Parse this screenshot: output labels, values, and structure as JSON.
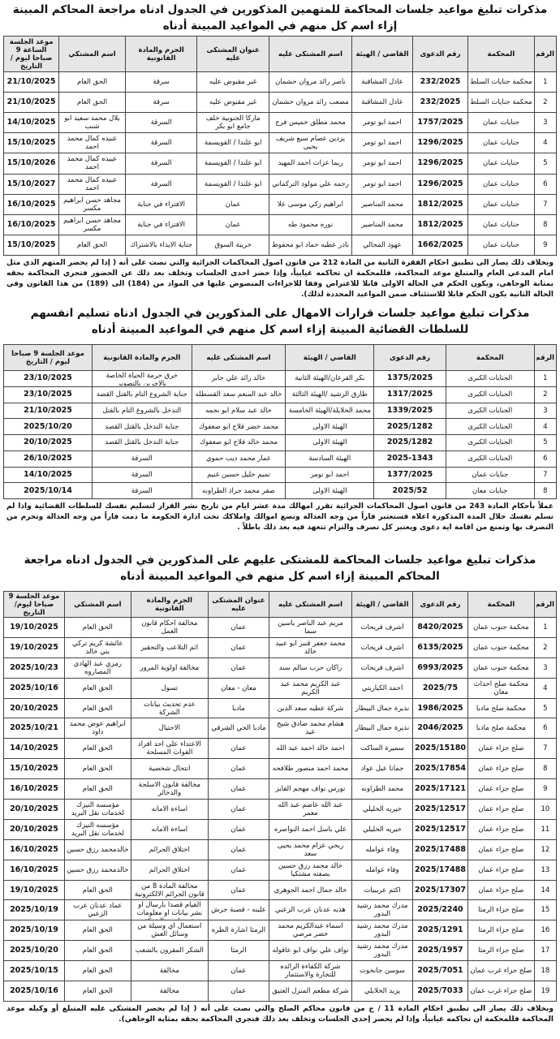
{
  "sections": [
    {
      "title": "مذكرات تبليغ مواعيد جلسات المحاكمة للمتهمين المذكورين في الجدول ادناه مراجعة المحاكم المبينة إزاء اسم كل منهم في المواعيد المبينة أدناه",
      "headers": [
        "الرقم",
        "المحكمة",
        "رقم الدعوى",
        "القاضي / الهيئة",
        "اسم المشتكى عليه",
        "عنوان المشتكى عليه",
        "الجرم والمادة القانونية",
        "اسم المشتكي",
        "موعد الجلسة الساعة 9 صباحا ليوم / التاريخ"
      ],
      "rows": [
        [
          "1",
          "محكمة جنايات السلط",
          "232/2025",
          "عادل المشاقبة",
          "ناصر رائد مروان خشمان",
          "غير مقبوض عليه",
          "سرقة",
          "الحق العام",
          "21/10/2025"
        ],
        [
          "2",
          "محكمة جنايات السلط",
          "232/2025",
          "عادل المشاقبة",
          "مصعب رائد مروان خشمان",
          "غير مقبوض عليه",
          "سرقة",
          "الحق العام",
          "21/10/2025"
        ],
        [
          "3",
          "جنايات عمان",
          "1757/2025",
          "احمد ابو تومر",
          "محمد مطلق خميس فرج",
          "ماركا الجنوبية خلف جامع ابو بكر",
          "السرقة",
          "بلال محمد سعيد ابو شنب",
          "14/10/2025"
        ],
        [
          "4",
          "جنايات عمان",
          "1296/2025",
          "احمد ابو تومر",
          "يزدين عصام سبع شريف يحيى",
          "ابو علندا / القويسمة",
          "السرقة",
          "عبيده كمال محمد احمد",
          "15/10/2025"
        ],
        [
          "5",
          "جنايات عمان",
          "1296/2025",
          "احمد ابو تومر",
          "ريما عزات احمد المهيد",
          "ابو علندا / القويسمة",
          "السرقة",
          "عبيده كمال محمد احمد",
          "15/10/2026"
        ],
        [
          "6",
          "جنايات عمان",
          "1296/2025",
          "احمد ابو تومر",
          "رحمه علي مولود التركماني",
          "ابو علندا / القويسمة",
          "السرقة",
          "عبيده كمال محمد احمد",
          "15/10/2027"
        ],
        [
          "7",
          "جنايات عمان",
          "1812/2025",
          "محمد المناصير",
          "ابراهيم زكي موسى علا",
          "عمان",
          "الافتراء في جناية",
          "مجاهد حسن ابراهيم مكسر",
          "16/10/2025"
        ],
        [
          "8",
          "جنايات عمان",
          "1812/2025",
          "محمد المناصير",
          "نوره محمود طه",
          "عمان",
          "الافتراء في جناية",
          "مجاهد حسن ابراهيم مكسر",
          "16/10/2025"
        ],
        [
          "9",
          "جنايات عمان",
          "1662/2025",
          "عهود المجالي",
          "نادر عطيه حماد ابو محفوظ",
          "خريبة السوق",
          "جناية الايذاء بالاشتراك",
          "الحق العام",
          "15/10/2025"
        ]
      ],
      "note": "وبخلاف ذلك يصار الى تطبيق احكام الفقرة الثانية من المادة 212 من قانون اصول المحاكمات الجزائية والتي نصت على أنه ( إذا لم يحضر المتهم الذي مثل امام المدعي العام والمتبلغ موعد المحاكمة، فللمحكمة ان تحاكمه غيابياً، وإذا حضر احدى الجلسات وتخلف بعد ذلك عن الحضور فتجري المحاكمة بحقه بمثابة الوجاهي، ويكون الحكم في الحالة الاولى قابلا للاعتراض وفقا للاجراءات المنصوص عليها في المواد من (184) الى (189) من هذا القانون وفي الحالة الثانية يكون الحكم قابلا للاستئناف ضمن المواعيد المحددة لذلك)."
    },
    {
      "title": "مذكرات تبليغ مواعيد جلسات قرارات الامهال على المذكورين في الجدول ادناه تسليم انفسهم للسلطات القضائية المبينة إزاء اسم كل منهم في المواعيد المبينة أدناه",
      "headers": [
        "الرقم",
        "المحكمة",
        "رقم الدعوى",
        "القاضي / الهيئة",
        "اسم المشتكى عليه",
        "الجرم والمادة القانونية",
        "موعد الجلسة 9 صباحا ليوم / التاريخ"
      ],
      "rows": [
        [
          "1",
          "الجنايات الكبرى",
          "1375/2025",
          "بكر القرعان/الهيئة الثانية",
          "خالد رائد علي جابر",
          "خرق حرمة الحياة الخاصة بالاخرين بالتصوير",
          "23/10/2025"
        ],
        [
          "2",
          "الجنايات الكبرى",
          "1317/2025",
          "طارق الرشيد /الهيئة الثالثة",
          "خالد عبد المنعم سعد القسطله",
          "جناية الشروع التام بالقتل القصد",
          "23/10/2025"
        ],
        [
          "3",
          "الجنايات الكبرى",
          "1339/2025",
          "محمد الخلايلة/الهيئة الخامسة",
          "خالد عبد سلام ابو نجمه",
          "التدخل بالشروع التام بالقتل",
          "21/10/2025"
        ],
        [
          "4",
          "الجنايات الكبرى",
          "2025/1282",
          "الهيئة الاولى",
          "محمد خضر فلاح ابو صعفوك",
          "جناية التدخل بالقتل القصد",
          "2025/10/20"
        ],
        [
          "5",
          "الجنايات الكبرى",
          "2025/1282",
          "الهيئة الاولى",
          "محمد خالد فلاح ابو صعفوك",
          "جناية التدخل بالقتل القصد",
          "20/10/2025"
        ],
        [
          "6",
          "الجنايات الكبرى",
          "2025-1343",
          "الهيئة السادسة",
          "عمار محمد ديب حموي",
          "السرقة",
          "26/10/2025"
        ],
        [
          "7",
          "جنايات عمان",
          "1377/2025",
          "احمد ابو تومر",
          "تميم خليل حسين غنيم",
          "السرقة",
          "14/10/2025"
        ],
        [
          "8",
          "جنايات معان",
          "2025/52",
          "الهيئة الاولى",
          "صقر محمد جراد الطراونه",
          "السرقة",
          "2025/10/14"
        ]
      ],
      "note": "عملاً بأحكام المادة 243 من قانون اصول المحاكمات الجزائية تقرر امهالك مدة عشر ايام من تاريخ نشر القرار لتسليم نفسك للسلطات القضائية واذا لم تسلم نفسك خلال المدة المذكورة اعلاه فستعتبر فاراً من وجه العدالة وتضع اموالك واملاكك تحت ادارة الحكومة ما دمت فاراً من وجه العدالة وتحرم من التصرف بها وتمنع من اقامة اية دعوى ويعتبر كل تصرف والتزام تتعهد فيه بعد ذلك باطلاً ."
    },
    {
      "title": "مذكرات تبليغ مواعيد جلسات المحاكمة للمشتكى عليهم على المذكورين في الجدول ادناه مراجعة المحاكم المبينة إزاء اسم كل منهم في المواعيد المبينة أدناه",
      "headers": [
        "الرقم",
        "المحكمة",
        "رقم الدعوى",
        "القاضي / الهيئة",
        "اسم المشتكى عليه",
        "عنوان المشتكى عليه",
        "الجرم والمادة القانونية",
        "اسم المشتكي",
        "موعد الجلسة 9 صباحا ليوم/التاريخ"
      ],
      "rows": [
        [
          "1",
          "محكمة جنوب عمان",
          "8420/2025",
          "أشرف قريحات",
          "مريم عبد الناصر ياسين سما",
          "عمان",
          "مخالفة احكام قانون العمل",
          "الحق العام",
          "19/10/2025"
        ],
        [
          "2",
          "محكمة جنوب عمان",
          "6135/2025",
          "أشرف قريحات",
          "محمد جعفر قنبر ابو عبيد خالد",
          "عمان",
          "اثم التلاعب والتحقير",
          "عائشة كريم تركي بني خالد",
          "19/10/2025"
        ],
        [
          "3",
          "محكمة جنوب عمان",
          "6993/2025",
          "أشرف قريحات",
          "راكان حرب سالم سند",
          "عمان",
          "مخالفة أولوية المرور",
          "رمزي عبد الهادي المصاروه",
          "2025/10/23"
        ],
        [
          "4",
          "محكمة صلح احداث معان",
          "2025/75",
          "احمد الكباريتي",
          "عبد الكريم محمد عبد الكريم",
          "معان - معان",
          "تسول",
          "الحق العام",
          "2025/10/16"
        ],
        [
          "5",
          "محكمة صلح مادبا",
          "1986/2025",
          "نذيرة جمال البيطار",
          "شركة عطيه سعد الدين",
          "مادبا",
          "عدم تحديث بيانات الشركة",
          "الحق العام",
          "20/10/2025"
        ],
        [
          "6",
          "محكمة صلح مادبا",
          "2046/2025",
          "نذيرة جمال البيطار",
          "هشام محمد صادق شيخ عيد",
          "مادبا الحي الشرقي",
          "الاحتيال",
          "ابراهيم عوض محمد داود",
          "2025/10/21"
        ],
        [
          "7",
          "صلح جزاء عمان",
          "2025/15180",
          "سميرة الساكت",
          "احمد خالد احمد عبد الله",
          "عمان",
          "الاعتداء على احد افراد القوات المسلحة",
          "الحق العام",
          "14/10/2025"
        ],
        [
          "8",
          "صلح جزاء عمان",
          "2025/17854",
          "جمانا عيل عواد",
          "محمد احمد منصور طلافحه",
          "عمان",
          "انتحال شخصية",
          "الحق العام",
          "15/10/2025"
        ],
        [
          "9",
          "صلح جزاء عمان",
          "2025/17121",
          "محمد الطراونه",
          "نورس نواف مهجم الفايز",
          "عمان",
          "مخالفة قانون الاسلحة والذخائر",
          "الحق العام",
          "16/10/2025"
        ],
        [
          "10",
          "صلح جزاء عمان",
          "2025/12517",
          "خيريه الخليلي",
          "عبد الله عاصم عبد الله معمر",
          "عمان",
          "اساءة الامانه",
          "مؤسسه النيزك لخدمات نقل البريد",
          "20/10/2025"
        ],
        [
          "11",
          "صلح جزاء عمان",
          "2025/12517",
          "خيريه الخليلي",
          "علي باسل احمد النواصره",
          "عمان",
          "اساءة الامانه",
          "مؤسسه النيزك لخدمات نقل البريد",
          "20/10/2025"
        ],
        [
          "12",
          "صلح جزاء عمان",
          "2025/17488",
          "وفاء عوامله",
          "ربحي عزام محمد يحيى سعد",
          "عمان",
          "اختلاق الجرائم",
          "خالدمحمد رزق حسين",
          "16/10/2025"
        ],
        [
          "13",
          "صلح جزاء عمان",
          "2025/17488",
          "وفاء عوامله",
          "خالد محمد رزق حسين بصفته مشتكيا",
          "عمان",
          "اختلاق الجرائم",
          "خالدمحمد رزق حسين",
          "16/10/2025"
        ],
        [
          "14",
          "صلح جزاء عمان",
          "2025/17307",
          "اكثم عريبيات",
          "خالد جمال احمد الجوهري",
          "عمان",
          "مخالفة المادة 8 من قانون الجرائم الالكترونية",
          "الحق العام",
          "19/10/2025"
        ],
        [
          "15",
          "صلح جزاء الرمثا",
          "2025/2240",
          "مدرك محمد رشيد البدور",
          "هديه عدنان عرب الزعبي",
          "علينه - قصبة جرش",
          "القيام قصدا بارسال او نشر بيانات او معلومات عن طريق الشبكة المعلوماتية",
          "عماد عدنان عرب الزعبي",
          "2025/10/19"
        ],
        [
          "16",
          "صلح جزاء الرمثا",
          "2025/1291",
          "مدرك محمد رشيد البدور",
          "اسماء عبدالكريم محمد خضر مرضي",
          "الرمثا اشارة الطره",
          "استعمال أي وسيلة من وسائل الغش",
          "الحق العام",
          "2025/10/19"
        ],
        [
          "17",
          "صلح جزاء الرمثا",
          "2025/1957",
          "مدرك محمد رشيد البدور",
          "نواف علي نواف ابو عاقوله",
          "الرمثا",
          "الشكر المقرون بالشغب",
          "الحق العام",
          "2025/10/20"
        ],
        [
          "18",
          "صلح جزاء غرب عمان",
          "2025/7051",
          "سوسن جانخوت",
          "شركة الكفاءة الرائده للتجارة والاستثمار",
          "عمان",
          "مخالفة",
          "الحق العام",
          "2025/10/15"
        ],
        [
          "19",
          "صلح جزاء غرب عمان",
          "2025/7033",
          "يزيد الخلايلي",
          "شركة مطعم المنزل العتيق",
          "عمان",
          "مخالفة",
          "الحق العام",
          "2025/10/16"
        ]
      ],
      "note": "وبخلاف ذلك يصار الى تطبيق احكام المادة 11 / ج من قانون محاكم الصلح والتي نصت على أنه ( إذا لم يحضر المشتكى عليه المتبلغ أو وكيله موعد المحاكمة فللمحكمة ان تحاكمه غيابياً، وإذا لم يحضر إحدى الجلسات وتخلف بعد ذلك فتجري المحاكمة بحقه بمثابة الوجاهي)."
    }
  ]
}
